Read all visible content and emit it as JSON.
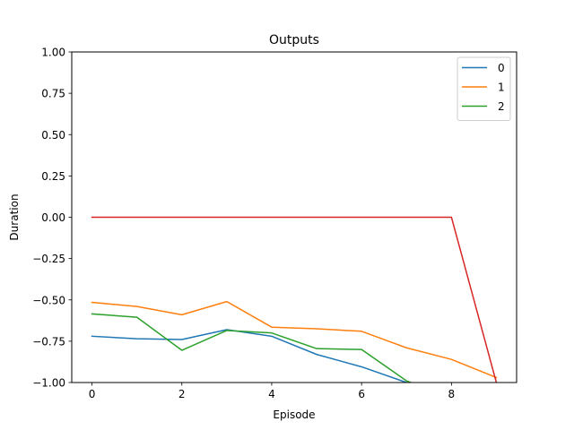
{
  "chart_data": {
    "type": "line",
    "title": "Outputs",
    "xlabel": "Episode",
    "ylabel": "Duration",
    "xlim": [
      -0.45,
      9.45
    ],
    "ylim": [
      -1.0,
      1.0
    ],
    "xticks": [
      0,
      2,
      4,
      6,
      8
    ],
    "xtick_labels": [
      "0",
      "2",
      "4",
      "6",
      "8"
    ],
    "yticks": [
      -1.0,
      -0.75,
      -0.5,
      -0.25,
      0.0,
      0.25,
      0.5,
      0.75,
      1.0
    ],
    "ytick_labels": [
      "−1.00",
      "−0.75",
      "−0.50",
      "−0.25",
      "0.00",
      "0.25",
      "0.50",
      "0.75",
      "1.00"
    ],
    "grid": false,
    "legend_position": "top-right",
    "series": [
      {
        "name": "0",
        "color": "#1f77b4",
        "x": [
          0,
          1,
          2,
          3,
          4,
          5,
          6,
          7,
          7.3
        ],
        "y": [
          -0.72,
          -0.735,
          -0.74,
          -0.68,
          -0.72,
          -0.83,
          -0.905,
          -1.0,
          -1.02
        ],
        "in_legend": true
      },
      {
        "name": "1",
        "color": "#ff7f0e",
        "x": [
          0,
          1,
          2,
          3,
          4,
          5,
          6,
          7,
          8,
          9
        ],
        "y": [
          -0.515,
          -0.54,
          -0.59,
          -0.51,
          -0.665,
          -0.675,
          -0.69,
          -0.79,
          -0.86,
          -0.97
        ],
        "in_legend": true
      },
      {
        "name": "2",
        "color": "#2ca02c",
        "x": [
          0,
          1,
          2,
          3,
          4,
          5,
          6,
          7,
          7.3
        ],
        "y": [
          -0.585,
          -0.605,
          -0.805,
          -0.685,
          -0.7,
          -0.795,
          -0.8,
          -0.99,
          -1.02
        ],
        "in_legend": true
      },
      {
        "name": "",
        "color": "#d62728",
        "x": [
          0,
          1,
          2,
          3,
          4,
          5,
          6,
          7,
          8,
          9
        ],
        "y": [
          0,
          0,
          0,
          0,
          0,
          0,
          0,
          0,
          0,
          -1.0
        ],
        "in_legend": false
      }
    ]
  }
}
